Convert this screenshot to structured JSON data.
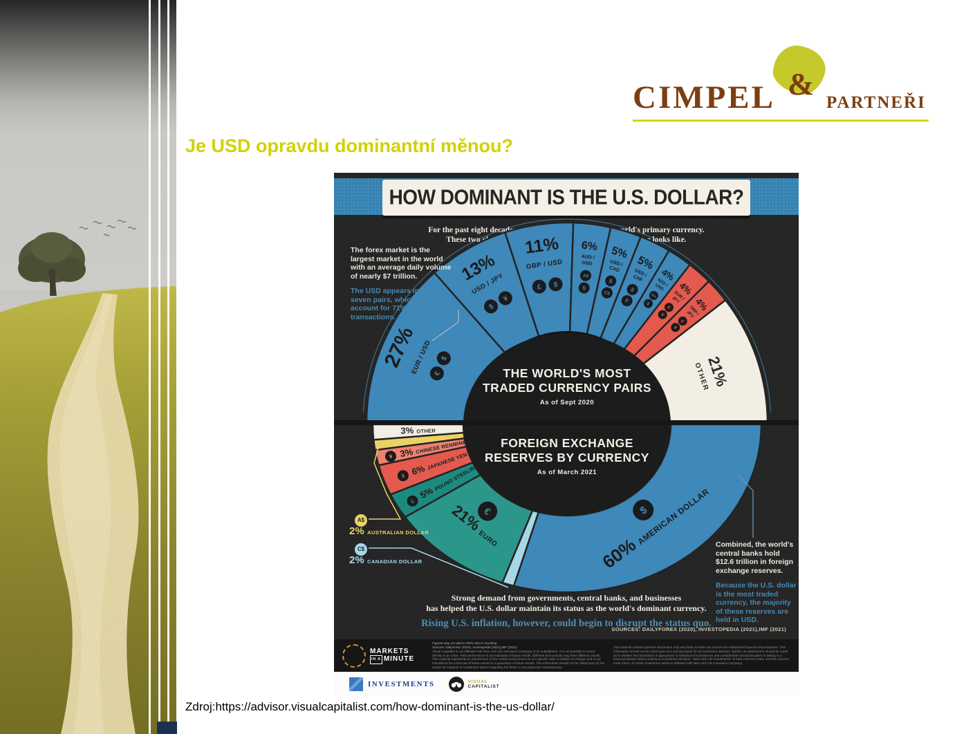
{
  "page": {
    "title": "Je USD opravdu dominantní měnou?",
    "source_line": "Zdroj:https://advisor.visualcapitalist.com/how-dominant-is-the-us-dollar/"
  },
  "brand": {
    "name_main": "CIMPEL",
    "amp": "&",
    "name_sub": "PARTNEŘI"
  },
  "infographic": {
    "title": "HOW DOMINANT IS THE U.S. DOLLAR?",
    "intro_line1": "For the past eight decades, the U.S. dollar has been the world's primary currency.",
    "intro_line2": "These two charts provide a snapshot of what this dominance looks like.",
    "left_note_white": "The forex market is the largest market in the world with an average daily volume of nearly $7 trillion.",
    "left_note_blue": "The USD appears in the top seven pairs, which together, account for 71% of global transactions.",
    "right_note_white": "Combined, the world's central banks hold $12.6 trillion in foreign exchange reserves.",
    "right_note_blue": "Because the U.S. dollar is the most traded currency, the majority of these reserves are held in USD.",
    "outro_line1": "Strong demand from governments, central banks, and businesses",
    "outro_line2": "has helped the U.S. dollar maintain its status as the world's dominant currency.",
    "outro_blue": "Rising U.S. inflation, however, could begin to disrupt the status quo.",
    "sources": "SOURCES: DAILYFOREX (2020), INVESTOPEDIA (2021),IMF (2021)",
    "footer": {
      "markets_word1": "MARKETS",
      "markets_inner": "IN A",
      "markets_word2": "MINUTE",
      "figures_note": "Figures may not add to 100% due to rounding.",
      "sources_note": "Sources: DailyForex (2020), Investopedia (2021),IMF (2021)",
      "disclaimer_left": "Visual Capitalist is not affiliated with New York Life Insurance Company or its subsidiaries. It is not possible to invest directly in an index. Past performance is not indicative of future results. Different time periods may have different results. This material represents an assessment of the market environment as of a specific date; is subject to change; and is not intended to be a forecast of future events or a guarantee of future results. This information should not be relied upon by the reader as research or investment advice regarding the funds or any particular issuer/security.",
      "disclaimer_right": "This material contains general information only and does not take into account an individual's financial circumstances. This information should not be relied upon as a primary basis for an investment decision. Rather, an assessment should be made as to whether the information is appropriate in individual circumstances and consideration should be given to talking to a financial advisor before making an investment decision. \"New York Life Investments\" is both a service mark, and the common trade name, of certain investment advisors affiliated with New York Life Insurance Company.",
      "nyl_label": "INVESTMENTS",
      "vc_line1": "VISUAL",
      "vc_line2": "CAPITALIST"
    }
  },
  "chart_data": [
    {
      "type": "pie",
      "shape": "half-donut-up",
      "title": "THE WORLD'S MOST TRADED CURRENCY PAIRS",
      "title_lines": [
        "THE WORLD'S MOST",
        "TRADED CURRENCY PAIRS"
      ],
      "subtitle": "As of Sept 2020",
      "series": [
        {
          "label": "EUR / USD",
          "value": 27,
          "color": "#3e88ba",
          "coins": [
            "€",
            "$"
          ]
        },
        {
          "label": "USD / JPY",
          "value": 13,
          "color": "#3e88ba",
          "coins": [
            "$",
            "¥"
          ]
        },
        {
          "label": "GBP / USD",
          "value": 11,
          "color": "#3e88ba",
          "coins": [
            "£",
            "$"
          ]
        },
        {
          "label": "AUD / USD",
          "value": 6,
          "color": "#3e88ba",
          "coins": [
            "A$",
            "$"
          ]
        },
        {
          "label": "USD / CAD",
          "value": 5,
          "color": "#3e88ba",
          "coins": [
            "$",
            "C$"
          ]
        },
        {
          "label": "USD / CHF",
          "value": 5,
          "color": "#3e88ba",
          "coins": [
            "$",
            "F"
          ]
        },
        {
          "label": "NZD / USD",
          "value": 4,
          "color": "#3e88ba",
          "coins": [
            "NZ$",
            "$"
          ]
        },
        {
          "label": "EUR / JPY",
          "value": 4,
          "color": "#e55a4e",
          "coins": [
            "€",
            "¥"
          ]
        },
        {
          "label": "GBP / JPY",
          "value": 4,
          "color": "#e55a4e",
          "coins": [
            "£",
            "¥"
          ]
        },
        {
          "label": "OTHER",
          "value": 21,
          "color": "#f2eee3",
          "coins": []
        }
      ]
    },
    {
      "type": "pie",
      "shape": "half-donut-down",
      "title": "FOREIGN EXCHANGE RESERVES BY CURRENCY",
      "title_lines": [
        "FOREIGN EXCHANGE",
        "RESERVES BY CURRENCY"
      ],
      "subtitle": "As of March 2021",
      "series": [
        {
          "label": "OTHER",
          "value": 3,
          "color": "#f2eee3",
          "coin": ""
        },
        {
          "label": "AUSTRALIAN DOLLAR",
          "value": 2,
          "color": "#ecd166",
          "coin": "A$",
          "callout": true
        },
        {
          "label": "CHINESE RENMINBI",
          "value": 3,
          "color": "#ef8170",
          "coin": "¥"
        },
        {
          "label": "JAPANESE YEN",
          "value": 6,
          "color": "#e55a4e",
          "coin": "¥"
        },
        {
          "label": "POUND STERLING",
          "value": 5,
          "color": "#1d8a7f",
          "coin": "£"
        },
        {
          "label": "EURO",
          "value": 21,
          "color": "#2b968a",
          "coin": "€"
        },
        {
          "label": "CANADIAN DOLLAR",
          "value": 2,
          "color": "#a7d8e8",
          "coin": "C$",
          "callout": true
        },
        {
          "label": "AMERICAN DOLLAR",
          "value": 60,
          "color": "#3e88ba",
          "coin": "$"
        }
      ],
      "callouts": [
        {
          "coin": "A$",
          "pct": "2%",
          "label": "AUSTRALIAN DOLLAR",
          "color": "#ecd166"
        },
        {
          "coin": "C$",
          "pct": "2%",
          "label": "CANADIAN DOLLAR",
          "color": "#a7d8e8"
        }
      ]
    }
  ]
}
